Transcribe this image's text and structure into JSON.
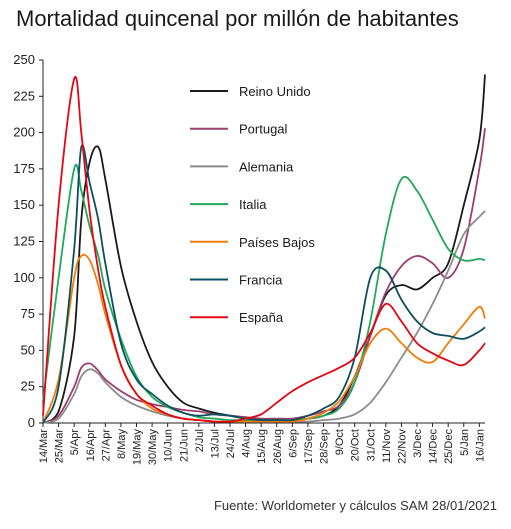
{
  "title": "Mortalidad quincenal por millón de habitantes",
  "source": "Fuente: Worldometer y cálculos SAM 28/01/2021",
  "chart_data": {
    "type": "line",
    "title": "Mortalidad quincenal por millón de habitantes",
    "ylim": [
      0,
      250
    ],
    "yticks": [
      0,
      25,
      50,
      75,
      100,
      125,
      150,
      175,
      200,
      225,
      250
    ],
    "x_tick_labels": [
      "14/Mar",
      "25/Mar",
      "5/Apr",
      "16/Apr",
      "27/Apr",
      "8/May",
      "19/May",
      "30/May",
      "10/Jun",
      "21/Jun",
      "2/Jul",
      "13/Jul",
      "24/Jul",
      "4/Aug",
      "15/Aug",
      "26/Aug",
      "6/Sep",
      "17/Sep",
      "28/Sep",
      "9/Oct",
      "20/Oct",
      "31/Oct",
      "11/Nov",
      "22/Nov",
      "3/Dec",
      "14/Dec",
      "25/Dec",
      "5/Jan",
      "16/Jan"
    ],
    "grid": false,
    "legend_position": "top-center",
    "series": [
      {
        "name": "Reino Unido",
        "color": "#1a1a1a",
        "x": [
          "14/Mar",
          "25/Mar",
          "5/Apr",
          "10/Apr",
          "16/Apr",
          "22/Apr",
          "27/Apr",
          "8/May",
          "19/May",
          "30/May",
          "10/Jun",
          "21/Jun",
          "2/Jul",
          "13/Jul",
          "24/Jul",
          "4/Aug",
          "15/Aug",
          "26/Aug",
          "6/Sep",
          "17/Sep",
          "28/Sep",
          "9/Oct",
          "20/Oct",
          "31/Oct",
          "11/Nov",
          "22/Nov",
          "3/Dec",
          "14/Dec",
          "25/Dec",
          "5/Jan",
          "16/Jan",
          "20/Jan"
        ],
        "values": [
          0,
          8,
          60,
          140,
          180,
          190,
          168,
          108,
          70,
          42,
          25,
          14,
          10,
          7,
          5,
          3,
          2,
          2,
          2,
          3,
          5,
          12,
          32,
          60,
          88,
          95,
          92,
          100,
          110,
          150,
          195,
          240
        ]
      },
      {
        "name": "Portugal",
        "color": "#9a3d6f",
        "x": [
          "14/Mar",
          "25/Mar",
          "5/Apr",
          "10/Apr",
          "16/Apr",
          "22/Apr",
          "27/Apr",
          "8/May",
          "19/May",
          "30/May",
          "10/Jun",
          "21/Jun",
          "2/Jul",
          "13/Jul",
          "24/Jul",
          "4/Aug",
          "15/Aug",
          "26/Aug",
          "6/Sep",
          "17/Sep",
          "28/Sep",
          "9/Oct",
          "20/Oct",
          "31/Oct",
          "11/Nov",
          "22/Nov",
          "3/Dec",
          "14/Dec",
          "25/Dec",
          "5/Jan",
          "16/Jan",
          "20/Jan"
        ],
        "values": [
          0,
          5,
          25,
          38,
          41,
          36,
          30,
          22,
          16,
          13,
          11,
          9,
          8,
          6,
          5,
          4,
          3,
          3,
          3,
          5,
          8,
          12,
          28,
          60,
          90,
          108,
          115,
          110,
          100,
          120,
          175,
          203
        ]
      },
      {
        "name": "Alemania",
        "color": "#8c8c8c",
        "x": [
          "14/Mar",
          "25/Mar",
          "5/Apr",
          "10/Apr",
          "16/Apr",
          "22/Apr",
          "27/Apr",
          "8/May",
          "19/May",
          "30/May",
          "10/Jun",
          "21/Jun",
          "2/Jul",
          "13/Jul",
          "24/Jul",
          "4/Aug",
          "15/Aug",
          "26/Aug",
          "6/Sep",
          "17/Sep",
          "28/Sep",
          "9/Oct",
          "20/Oct",
          "31/Oct",
          "11/Nov",
          "22/Nov",
          "3/Dec",
          "14/Dec",
          "25/Dec",
          "5/Jan",
          "16/Jan",
          "20/Jan"
        ],
        "values": [
          0,
          3,
          20,
          32,
          37,
          34,
          28,
          18,
          12,
          8,
          5,
          3,
          2,
          1,
          1,
          1,
          1,
          1,
          1,
          1,
          2,
          3,
          6,
          14,
          28,
          45,
          62,
          82,
          105,
          130,
          142,
          146
        ]
      },
      {
        "name": "Italia",
        "color": "#21a95b",
        "x": [
          "14/Mar",
          "25/Mar",
          "5/Apr",
          "10/Apr",
          "16/Apr",
          "22/Apr",
          "27/Apr",
          "8/May",
          "19/May",
          "30/May",
          "10/Jun",
          "21/Jun",
          "2/Jul",
          "13/Jul",
          "24/Jul",
          "4/Aug",
          "15/Aug",
          "26/Aug",
          "6/Sep",
          "17/Sep",
          "28/Sep",
          "9/Oct",
          "20/Oct",
          "31/Oct",
          "11/Nov",
          "22/Nov",
          "3/Dec",
          "14/Dec",
          "25/Dec",
          "5/Jan",
          "16/Jan",
          "20/Jan"
        ],
        "values": [
          15,
          100,
          175,
          160,
          135,
          115,
          92,
          58,
          32,
          18,
          11,
          7,
          4,
          3,
          2,
          2,
          2,
          2,
          2,
          3,
          5,
          10,
          28,
          70,
          130,
          168,
          160,
          140,
          120,
          112,
          113,
          112
        ]
      },
      {
        "name": "Países Bajos",
        "color": "#f07d0a",
        "x": [
          "14/Mar",
          "25/Mar",
          "5/Apr",
          "10/Apr",
          "16/Apr",
          "22/Apr",
          "27/Apr",
          "8/May",
          "19/May",
          "30/May",
          "10/Jun",
          "21/Jun",
          "2/Jul",
          "13/Jul",
          "24/Jul",
          "4/Aug",
          "15/Aug",
          "26/Aug",
          "6/Sep",
          "17/Sep",
          "28/Sep",
          "9/Oct",
          "20/Oct",
          "31/Oct",
          "11/Nov",
          "22/Nov",
          "3/Dec",
          "14/Dec",
          "25/Dec",
          "5/Jan",
          "16/Jan",
          "20/Jan"
        ],
        "values": [
          0,
          30,
          100,
          115,
          112,
          95,
          75,
          40,
          20,
          10,
          6,
          3,
          2,
          1,
          1,
          1,
          1,
          1,
          1,
          3,
          7,
          15,
          32,
          55,
          65,
          55,
          45,
          42,
          55,
          68,
          80,
          72
        ]
      },
      {
        "name": "Francia",
        "color": "#0c4f5e",
        "x": [
          "14/Mar",
          "25/Mar",
          "5/Apr",
          "10/Apr",
          "16/Apr",
          "22/Apr",
          "27/Apr",
          "8/May",
          "19/May",
          "30/May",
          "10/Jun",
          "21/Jun",
          "2/Jul",
          "13/Jul",
          "24/Jul",
          "4/Aug",
          "15/Aug",
          "26/Aug",
          "6/Sep",
          "17/Sep",
          "28/Sep",
          "9/Oct",
          "20/Oct",
          "31/Oct",
          "11/Nov",
          "22/Nov",
          "3/Dec",
          "14/Dec",
          "25/Dec",
          "5/Jan",
          "16/Jan",
          "20/Jan"
        ],
        "values": [
          0,
          25,
          120,
          190,
          165,
          140,
          110,
          55,
          30,
          20,
          12,
          7,
          5,
          6,
          5,
          3,
          2,
          2,
          2,
          5,
          10,
          18,
          45,
          100,
          105,
          85,
          70,
          62,
          60,
          58,
          63,
          66
        ]
      },
      {
        "name": "España",
        "color": "#e30613",
        "x": [
          "14/Mar",
          "25/Mar",
          "5/Apr",
          "10/Apr",
          "16/Apr",
          "22/Apr",
          "27/Apr",
          "8/May",
          "19/May",
          "30/May",
          "10/Jun",
          "21/Jun",
          "2/Jul",
          "13/Jul",
          "24/Jul",
          "4/Aug",
          "15/Aug",
          "26/Aug",
          "6/Sep",
          "17/Sep",
          "28/Sep",
          "9/Oct",
          "20/Oct",
          "31/Oct",
          "11/Nov",
          "22/Nov",
          "3/Dec",
          "14/Dec",
          "25/Dec",
          "5/Jan",
          "16/Jan",
          "20/Jan"
        ],
        "values": [
          5,
          150,
          237,
          200,
          145,
          105,
          80,
          40,
          20,
          12,
          6,
          3,
          2,
          1,
          1,
          3,
          6,
          14,
          22,
          28,
          33,
          38,
          45,
          62,
          82,
          70,
          55,
          48,
          43,
          40,
          50,
          55
        ]
      }
    ]
  }
}
